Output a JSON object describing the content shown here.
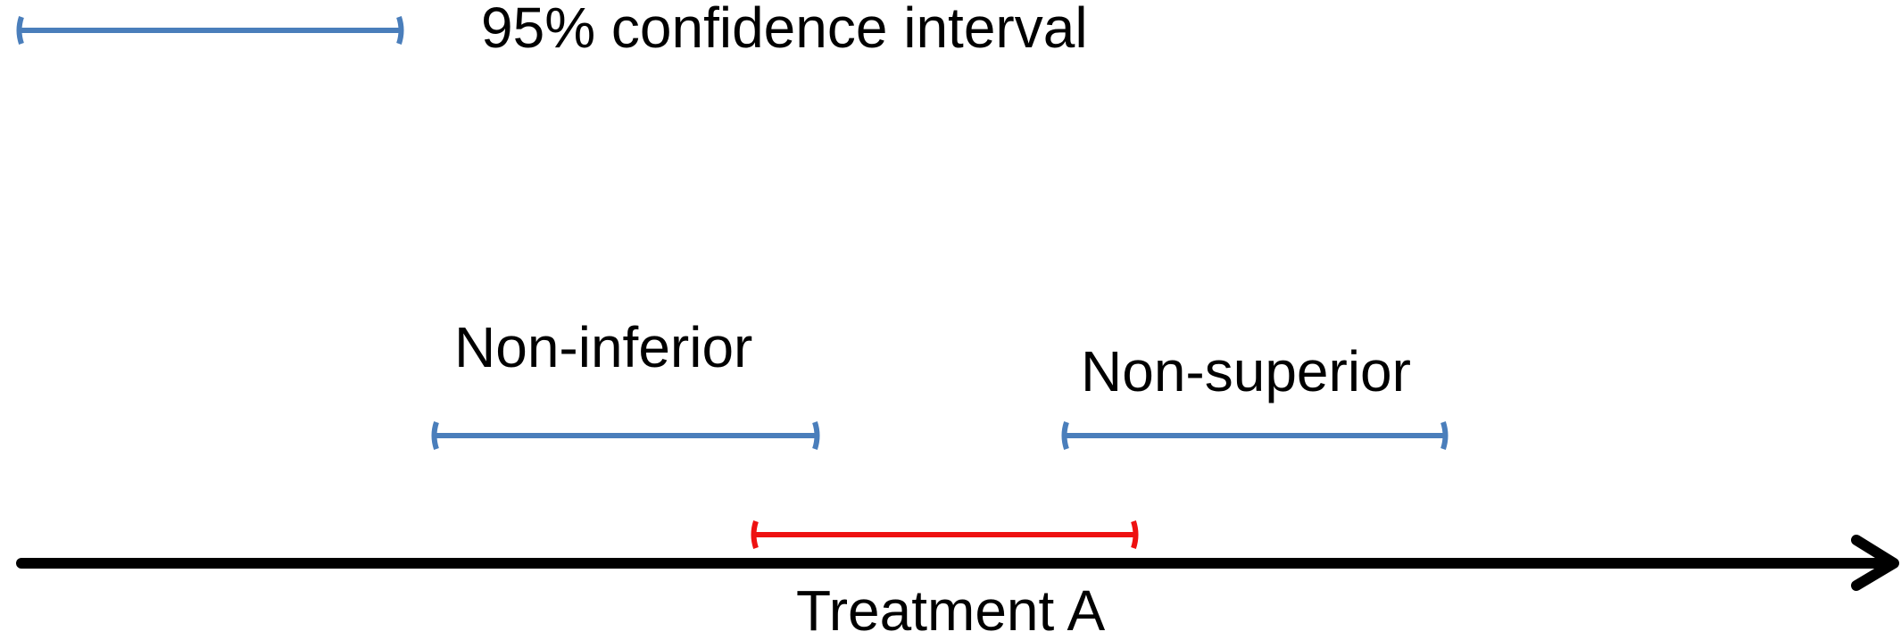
{
  "legend": {
    "label": "95% confidence interval"
  },
  "labels": {
    "non_inferior": "Non-inferior",
    "non_superior": "Non-superior"
  },
  "axis": {
    "label": "Treatment A"
  }
}
